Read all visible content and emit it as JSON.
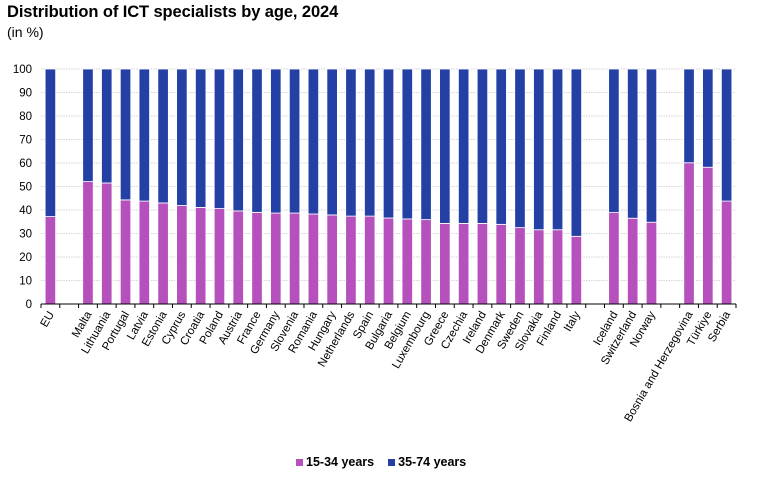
{
  "chart_data": {
    "type": "bar",
    "stacked": true,
    "title": "Distribution of ICT specialists by age, 2024",
    "subtitle": "(in %)",
    "xlabel": "",
    "ylabel": "",
    "ylim": [
      0,
      100
    ],
    "yticks": [
      0,
      10,
      20,
      30,
      40,
      50,
      60,
      70,
      80,
      90,
      100
    ],
    "grid": true,
    "legend_position": "bottom-center",
    "categories": [
      "EU",
      "",
      "Malta",
      "Lithuania",
      "Portugal",
      "Latvia",
      "Estonia",
      "Cyprus",
      "Croatia",
      "Poland",
      "Austria",
      "France",
      "Germany",
      "Slovenia",
      "Romania",
      "Hungary",
      "Netherlands",
      "Spain",
      "Bulgaria",
      "Belgium",
      "Luxembourg",
      "Greece",
      "Czechia",
      "Ireland",
      "Denmark",
      "Sweden",
      "Slovakia",
      "Finland",
      "Italy",
      "",
      "Iceland",
      "Switzerland",
      "Norway",
      "",
      "Bosnia and Herzegovina",
      "Türkiye",
      "Serbia"
    ],
    "series": [
      {
        "name": "15-34 years",
        "color": "#b550bd",
        "values": [
          37.2,
          null,
          52.1,
          51.5,
          44.3,
          43.8,
          43.0,
          41.9,
          41.1,
          40.6,
          39.6,
          39.0,
          38.7,
          38.7,
          38.3,
          37.9,
          37.4,
          37.4,
          36.6,
          36.2,
          35.9,
          34.3,
          34.3,
          34.3,
          33.9,
          32.5,
          31.6,
          31.6,
          28.8,
          null,
          38.9,
          36.5,
          34.8,
          null,
          60.1,
          58.2,
          43.8
        ]
      },
      {
        "name": "35-74 years",
        "color": "#2440a4",
        "values": [
          62.8,
          null,
          47.9,
          48.5,
          55.7,
          56.2,
          57.0,
          58.1,
          58.9,
          59.4,
          60.4,
          61.0,
          61.3,
          61.3,
          61.7,
          62.1,
          62.6,
          62.6,
          63.4,
          63.8,
          64.1,
          65.7,
          65.7,
          65.7,
          66.1,
          67.5,
          68.4,
          68.4,
          71.2,
          null,
          61.1,
          63.5,
          65.2,
          null,
          39.9,
          41.8,
          56.2
        ]
      }
    ]
  }
}
